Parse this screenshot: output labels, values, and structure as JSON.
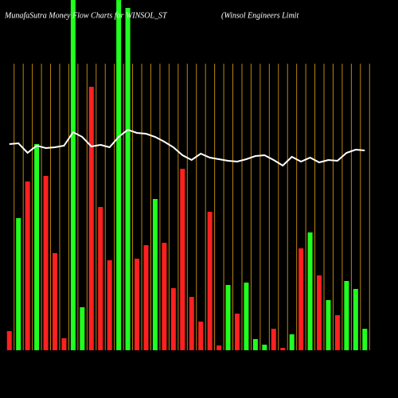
{
  "chart_data": {
    "type": "bar",
    "title": "MunafaSutra  Money Flow  Charts for WINSOL_ST",
    "subtitle": "(Winsol Engineers Limit",
    "categories": [
      null,
      null,
      null,
      null,
      null,
      null,
      null,
      null,
      null,
      null,
      null,
      null,
      null,
      null,
      null,
      null,
      null,
      null,
      null,
      null,
      null,
      null,
      null,
      null,
      null,
      null,
      null,
      null,
      null,
      null,
      null,
      null,
      null,
      null,
      null,
      null,
      null,
      null,
      null,
      null
    ],
    "values": [
      24,
      166,
      212,
      259,
      219,
      122,
      15,
      460,
      54,
      331,
      180,
      113,
      460,
      430,
      115,
      132,
      190,
      135,
      78,
      228,
      67,
      36,
      174,
      6,
      82,
      46,
      85,
      14,
      7,
      27,
      3,
      20,
      128,
      148,
      94,
      63,
      44,
      87,
      77,
      27
    ],
    "colors": [
      "#ff2020",
      "#20ff20",
      "#ff2020",
      "#20ff20",
      "#ff2020",
      "#ff2020",
      "#ff2020",
      "#20ff20",
      "#20ff20",
      "#ff2020",
      "#ff2020",
      "#ff2020",
      "#20ff20",
      "#20ff20",
      "#ff2020",
      "#ff2020",
      "#20ff20",
      "#ff2020",
      "#ff2020",
      "#ff2020",
      "#ff2020",
      "#ff2020",
      "#ff2020",
      "#ff2020",
      "#20ff20",
      "#ff2020",
      "#20ff20",
      "#20ff20",
      "#20ff20",
      "#ff2020",
      "#ff2020",
      "#20ff20",
      "#ff2020",
      "#20ff20",
      "#ff2020",
      "#20ff20",
      "#ff2020",
      "#20ff20",
      "#20ff20",
      "#20ff20"
    ],
    "line": {
      "color": "#ffffff",
      "values": [
        259,
        260,
        248,
        257,
        254,
        255,
        257,
        274,
        268,
        256,
        258,
        255,
        268,
        277,
        273,
        272,
        268,
        262,
        255,
        245,
        239,
        247,
        242,
        240,
        238,
        237,
        240,
        244,
        245,
        239,
        232,
        243,
        237,
        242,
        236,
        239,
        238,
        248,
        252,
        251
      ]
    },
    "ylim": [
      0,
      440
    ],
    "grid": true,
    "grid_color": "#b8860b"
  }
}
